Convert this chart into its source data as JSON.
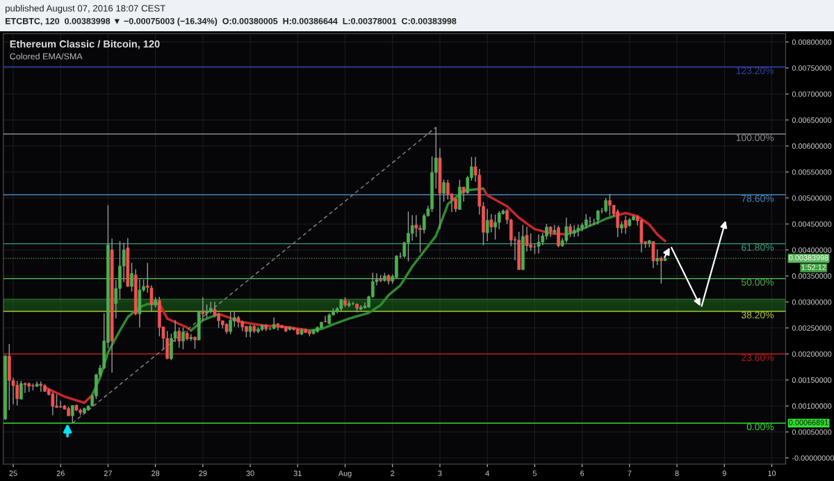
{
  "chart_data": {
    "type": "candlestick",
    "title": "Ethereum Classic / Bitcoin, 120",
    "subtitle": "Colored EMA/SMA",
    "annotations": [
      "published August 07, 2016 18:07 CEST",
      "ETCBTC, 120  0.00383998 ▼ −0.00075003 (−16.34%)  O:0.00380005  H:0.00386644  L:0.00378001  C:0.00383998",
      "1:52:12",
      {
        "text": "123.20%",
        "y": 0.00752
      },
      {
        "text": "100.00%",
        "y": 0.00623
      },
      {
        "text": "78.60%",
        "y": 0.00506
      },
      {
        "text": "61.80%",
        "y": 0.00412
      },
      {
        "text": "50.00%",
        "y": 0.00345
      },
      {
        "text": "38.20%",
        "y": 0.00282
      },
      {
        "text": "23.60%",
        "y": 0.002
      },
      {
        "text": "0.00%",
        "y": 0.00066891
      }
    ],
    "x": [
      "2016-07-24T20:00",
      "2016-07-24T22:00",
      "2016-07-25T00:00",
      "2016-07-25T02:00",
      "2016-07-25T04:00",
      "2016-07-25T06:00",
      "2016-07-25T08:00",
      "2016-07-25T10:00",
      "2016-07-25T12:00",
      "2016-07-25T14:00",
      "2016-07-25T16:00",
      "2016-07-25T18:00",
      "2016-07-25T20:00",
      "2016-07-25T22:00",
      "2016-07-26T00:00",
      "2016-07-26T02:00",
      "2016-07-26T04:00",
      "2016-07-26T06:00",
      "2016-07-26T08:00",
      "2016-07-26T10:00",
      "2016-07-26T12:00",
      "2016-07-26T14:00",
      "2016-07-26T16:00",
      "2016-07-26T18:00",
      "2016-07-26T20:00",
      "2016-07-26T22:00",
      "2016-07-27T00:00",
      "2016-07-27T02:00",
      "2016-07-27T04:00",
      "2016-07-27T06:00",
      "2016-07-27T08:00",
      "2016-07-27T10:00",
      "2016-07-27T12:00",
      "2016-07-27T14:00",
      "2016-07-27T16:00",
      "2016-07-27T18:00",
      "2016-07-27T20:00",
      "2016-07-27T22:00",
      "2016-07-28T00:00",
      "2016-07-28T02:00",
      "2016-07-28T04:00",
      "2016-07-28T06:00",
      "2016-07-28T08:00",
      "2016-07-28T10:00",
      "2016-07-28T12:00",
      "2016-07-28T14:00",
      "2016-07-28T16:00",
      "2016-07-28T18:00",
      "2016-07-28T20:00",
      "2016-07-28T22:00",
      "2016-07-29T00:00",
      "2016-07-29T02:00",
      "2016-07-29T04:00",
      "2016-07-29T06:00",
      "2016-07-29T08:00",
      "2016-07-29T10:00",
      "2016-07-29T12:00",
      "2016-07-29T14:00",
      "2016-07-29T16:00",
      "2016-07-29T18:00",
      "2016-07-29T20:00",
      "2016-07-29T22:00",
      "2016-07-30T00:00",
      "2016-07-30T02:00",
      "2016-07-30T04:00",
      "2016-07-30T06:00",
      "2016-07-30T08:00",
      "2016-07-30T10:00",
      "2016-07-30T12:00",
      "2016-07-30T14:00",
      "2016-07-30T16:00",
      "2016-07-30T18:00",
      "2016-07-30T20:00",
      "2016-07-30T22:00",
      "2016-07-31T00:00",
      "2016-07-31T02:00",
      "2016-07-31T04:00",
      "2016-07-31T06:00",
      "2016-07-31T08:00",
      "2016-07-31T10:00",
      "2016-07-31T12:00",
      "2016-07-31T14:00",
      "2016-07-31T16:00",
      "2016-07-31T18:00",
      "2016-07-31T20:00",
      "2016-07-31T22:00",
      "2016-08-01T00:00",
      "2016-08-01T02:00",
      "2016-08-01T04:00",
      "2016-08-01T06:00",
      "2016-08-01T08:00",
      "2016-08-01T10:00",
      "2016-08-01T12:00",
      "2016-08-01T14:00",
      "2016-08-01T16:00",
      "2016-08-01T18:00",
      "2016-08-01T20:00",
      "2016-08-01T22:00",
      "2016-08-02T00:00",
      "2016-08-02T02:00",
      "2016-08-02T04:00",
      "2016-08-02T06:00",
      "2016-08-02T08:00",
      "2016-08-02T10:00",
      "2016-08-02T12:00",
      "2016-08-02T14:00",
      "2016-08-02T16:00",
      "2016-08-02T18:00",
      "2016-08-02T20:00",
      "2016-08-02T22:00",
      "2016-08-03T00:00",
      "2016-08-03T02:00",
      "2016-08-03T04:00",
      "2016-08-03T06:00",
      "2016-08-03T08:00",
      "2016-08-03T10:00",
      "2016-08-03T12:00",
      "2016-08-03T14:00",
      "2016-08-03T16:00",
      "2016-08-03T18:00",
      "2016-08-03T20:00",
      "2016-08-03T22:00",
      "2016-08-04T00:00",
      "2016-08-04T02:00",
      "2016-08-04T04:00",
      "2016-08-04T06:00",
      "2016-08-04T08:00",
      "2016-08-04T10:00",
      "2016-08-04T12:00",
      "2016-08-04T14:00",
      "2016-08-04T16:00",
      "2016-08-04T18:00",
      "2016-08-04T20:00",
      "2016-08-04T22:00",
      "2016-08-05T00:00",
      "2016-08-05T02:00",
      "2016-08-05T04:00",
      "2016-08-05T06:00",
      "2016-08-05T08:00",
      "2016-08-05T10:00",
      "2016-08-05T12:00",
      "2016-08-05T14:00",
      "2016-08-05T16:00",
      "2016-08-05T18:00",
      "2016-08-05T20:00",
      "2016-08-05T22:00",
      "2016-08-06T00:00",
      "2016-08-06T02:00",
      "2016-08-06T04:00",
      "2016-08-06T06:00",
      "2016-08-06T08:00",
      "2016-08-06T10:00",
      "2016-08-06T12:00",
      "2016-08-06T14:00",
      "2016-08-06T16:00",
      "2016-08-06T18:00",
      "2016-08-06T20:00",
      "2016-08-06T22:00",
      "2016-08-07T00:00",
      "2016-08-07T02:00",
      "2016-08-07T04:00",
      "2016-08-07T06:00",
      "2016-08-07T08:00",
      "2016-08-07T10:00",
      "2016-08-07T12:00",
      "2016-08-07T14:00",
      "2016-08-07T16:00",
      "2016-08-07T18:00"
    ],
    "ohlc": [
      [
        0.00075,
        0.00198,
        0.00073,
        0.00196
      ],
      [
        0.00196,
        0.00219,
        0.00092,
        0.00149
      ],
      [
        0.00149,
        0.00154,
        0.00103,
        0.00139
      ],
      [
        0.0014,
        0.00148,
        0.00101,
        0.00114
      ],
      [
        0.00113,
        0.00148,
        0.00113,
        0.00143
      ],
      [
        0.00143,
        0.00145,
        0.00125,
        0.00141
      ],
      [
        0.00143,
        0.00145,
        0.00127,
        0.00138
      ],
      [
        0.00139,
        0.00143,
        0.0013,
        0.00138
      ],
      [
        0.00138,
        0.00147,
        0.00136,
        0.00142
      ],
      [
        0.00142,
        0.00147,
        0.00127,
        0.00139
      ],
      [
        0.00139,
        0.00142,
        0.00127,
        0.00128
      ],
      [
        0.0013,
        0.00133,
        0.0012,
        0.00122
      ],
      [
        0.00123,
        0.00127,
        0.00082,
        0.00099
      ],
      [
        0.001,
        0.00122,
        0.00097,
        0.00097
      ],
      [
        0.00099,
        0.0011,
        0.00096,
        0.00098
      ],
      [
        0.001,
        0.00102,
        0.00093,
        0.00094
      ],
      [
        0.00095,
        0.00099,
        0.00081,
        0.00081
      ],
      [
        0.00081,
        0.00101,
        0.00066891,
        0.00101
      ],
      [
        0.00101,
        0.00103,
        0.0009,
        0.00092
      ],
      [
        0.00092,
        0.00095,
        0.00082,
        0.00087
      ],
      [
        0.00087,
        0.00097,
        0.00086,
        0.00095
      ],
      [
        0.00092,
        0.00101,
        0.00091,
        0.001
      ],
      [
        0.001,
        0.00121,
        0.00099,
        0.00119
      ],
      [
        0.00119,
        0.00162,
        0.00113,
        0.0016
      ],
      [
        0.0016,
        0.00179,
        0.00156,
        0.00173
      ],
      [
        0.00173,
        0.00278,
        0.00171,
        0.00225
      ],
      [
        0.00222,
        0.00486,
        0.00211,
        0.0041
      ],
      [
        0.004,
        0.00422,
        0.00164,
        0.00225
      ],
      [
        0.00297,
        0.00342,
        0.00268,
        0.00326
      ],
      [
        0.00326,
        0.00417,
        0.00305,
        0.00369
      ],
      [
        0.00369,
        0.00414,
        0.00338,
        0.004
      ],
      [
        0.00404,
        0.00423,
        0.00329,
        0.0033
      ],
      [
        0.0033,
        0.00375,
        0.0032,
        0.00355
      ],
      [
        0.00352,
        0.00363,
        0.00274,
        0.00277
      ],
      [
        0.00277,
        0.00343,
        0.00251,
        0.00323
      ],
      [
        0.00323,
        0.00343,
        0.0032,
        0.0033
      ],
      [
        0.00331,
        0.00375,
        0.00318,
        0.00328
      ],
      [
        0.00327,
        0.00332,
        0.00281,
        0.00295
      ],
      [
        0.00294,
        0.00309,
        0.0029,
        0.00304
      ],
      [
        0.00303,
        0.0031,
        0.00234,
        0.00251
      ],
      [
        0.00252,
        0.00252,
        0.00209,
        0.0023
      ],
      [
        0.0023,
        0.00244,
        0.0019,
        0.00191
      ],
      [
        0.00191,
        0.00239,
        0.00188,
        0.0023
      ],
      [
        0.0023,
        0.00265,
        0.00223,
        0.00243
      ],
      [
        0.00244,
        0.00251,
        0.00212,
        0.00225
      ],
      [
        0.00225,
        0.00251,
        0.00209,
        0.00242
      ],
      [
        0.0024,
        0.00244,
        0.00226,
        0.00229
      ],
      [
        0.00229,
        0.00238,
        0.00225,
        0.00232
      ],
      [
        0.00232,
        0.00234,
        0.0021,
        0.00227
      ],
      [
        0.00227,
        0.00283,
        0.00226,
        0.00281
      ],
      [
        0.00281,
        0.00309,
        0.00263,
        0.00277
      ],
      [
        0.00278,
        0.00295,
        0.0027,
        0.00283
      ],
      [
        0.00281,
        0.003,
        0.00278,
        0.00288
      ],
      [
        0.00286,
        0.003,
        0.0027,
        0.00274
      ],
      [
        0.00277,
        0.00277,
        0.0025,
        0.00264
      ],
      [
        0.00264,
        0.00264,
        0.00249,
        0.00256
      ],
      [
        0.00257,
        0.00259,
        0.00239,
        0.00243
      ],
      [
        0.00243,
        0.00281,
        0.00238,
        0.00265
      ],
      [
        0.00263,
        0.00281,
        0.00252,
        0.0027
      ],
      [
        0.0027,
        0.00273,
        0.00251,
        0.00261
      ],
      [
        0.00262,
        0.00264,
        0.00244,
        0.00252
      ],
      [
        0.00253,
        0.00254,
        0.00232,
        0.00243
      ],
      [
        0.00243,
        0.00256,
        0.00232,
        0.00253
      ],
      [
        0.00253,
        0.00256,
        0.0024,
        0.00244
      ],
      [
        0.00243,
        0.00252,
        0.0024,
        0.00248
      ],
      [
        0.00247,
        0.00257,
        0.00244,
        0.00255
      ],
      [
        0.00255,
        0.00257,
        0.00244,
        0.00248
      ],
      [
        0.00248,
        0.00252,
        0.00246,
        0.00248
      ],
      [
        0.00249,
        0.0027,
        0.00247,
        0.00257
      ],
      [
        0.00258,
        0.00259,
        0.00245,
        0.00253
      ],
      [
        0.00255,
        0.00256,
        0.00249,
        0.00251
      ],
      [
        0.00252,
        0.00253,
        0.00242,
        0.00244
      ],
      [
        0.00247,
        0.00253,
        0.00245,
        0.00251
      ],
      [
        0.0025,
        0.00251,
        0.00245,
        0.00247
      ],
      [
        0.00248,
        0.00249,
        0.00237,
        0.00238
      ],
      [
        0.00238,
        0.00249,
        0.00236,
        0.00246
      ],
      [
        0.00246,
        0.00249,
        0.0024,
        0.00241
      ],
      [
        0.00243,
        0.00244,
        0.00234,
        0.00239
      ],
      [
        0.00239,
        0.00247,
        0.00238,
        0.00245
      ],
      [
        0.00243,
        0.00253,
        0.00241,
        0.00251
      ],
      [
        0.0025,
        0.00262,
        0.00249,
        0.00261
      ],
      [
        0.00263,
        0.00273,
        0.00261,
        0.00262
      ],
      [
        0.00258,
        0.00278,
        0.00257,
        0.00275
      ],
      [
        0.00275,
        0.00288,
        0.00274,
        0.00283
      ],
      [
        0.00281,
        0.0029,
        0.00278,
        0.00287
      ],
      [
        0.00287,
        0.00306,
        0.00282,
        0.00304
      ],
      [
        0.00303,
        0.00309,
        0.0029,
        0.00294
      ],
      [
        0.00293,
        0.00303,
        0.0029,
        0.00297
      ],
      [
        0.00297,
        0.003,
        0.00294,
        0.00297
      ],
      [
        0.00296,
        0.00297,
        0.0028,
        0.00288
      ],
      [
        0.00286,
        0.00294,
        0.00284,
        0.0029
      ],
      [
        0.00289,
        0.00299,
        0.00287,
        0.00292
      ],
      [
        0.0029,
        0.00312,
        0.00289,
        0.0031
      ],
      [
        0.0031,
        0.00356,
        0.00308,
        0.00339
      ],
      [
        0.00339,
        0.00355,
        0.00332,
        0.00343
      ],
      [
        0.00344,
        0.00352,
        0.00338,
        0.00341
      ],
      [
        0.00341,
        0.00356,
        0.00339,
        0.0035
      ],
      [
        0.00351,
        0.00353,
        0.00334,
        0.0034
      ],
      [
        0.0034,
        0.00353,
        0.00335,
        0.00349
      ],
      [
        0.00347,
        0.0039,
        0.00345,
        0.00388
      ],
      [
        0.00388,
        0.00395,
        0.00384,
        0.00388
      ],
      [
        0.00388,
        0.00416,
        0.00385,
        0.00414
      ],
      [
        0.00414,
        0.00474,
        0.00378,
        0.00432
      ],
      [
        0.00432,
        0.00467,
        0.00418,
        0.00447
      ],
      [
        0.00448,
        0.00467,
        0.00425,
        0.00442
      ],
      [
        0.00442,
        0.00448,
        0.00395,
        0.00439
      ],
      [
        0.00439,
        0.0047,
        0.00432,
        0.00466
      ],
      [
        0.00466,
        0.00485,
        0.00464,
        0.00479
      ],
      [
        0.00479,
        0.0058,
        0.00473,
        0.00549
      ],
      [
        0.00549,
        0.00636,
        0.00518,
        0.00577
      ],
      [
        0.00577,
        0.00596,
        0.0044,
        0.00509
      ],
      [
        0.00509,
        0.00535,
        0.00493,
        0.0053
      ],
      [
        0.00529,
        0.00535,
        0.00497,
        0.00507
      ],
      [
        0.00508,
        0.00508,
        0.00473,
        0.00497
      ],
      [
        0.00499,
        0.00499,
        0.00473,
        0.00479
      ],
      [
        0.00478,
        0.00535,
        0.00477,
        0.00521
      ],
      [
        0.00521,
        0.00521,
        0.00493,
        0.0051
      ],
      [
        0.0051,
        0.00543,
        0.00508,
        0.00539
      ],
      [
        0.00539,
        0.00579,
        0.00533,
        0.0056
      ],
      [
        0.0056,
        0.00579,
        0.00531,
        0.00544
      ],
      [
        0.00544,
        0.00556,
        0.00468,
        0.00484
      ],
      [
        0.00484,
        0.00492,
        0.00409,
        0.00434
      ],
      [
        0.00433,
        0.00479,
        0.00417,
        0.00457
      ],
      [
        0.00458,
        0.00469,
        0.00434,
        0.00444
      ],
      [
        0.00444,
        0.00468,
        0.0042,
        0.00453
      ],
      [
        0.00453,
        0.00475,
        0.0044,
        0.00471
      ],
      [
        0.0047,
        0.00478,
        0.00468,
        0.00475
      ],
      [
        0.00476,
        0.00479,
        0.0045,
        0.00458
      ],
      [
        0.00458,
        0.0046,
        0.00407,
        0.00419
      ],
      [
        0.0042,
        0.00426,
        0.0038,
        0.00419
      ],
      [
        0.00419,
        0.00435,
        0.00362,
        0.00362
      ],
      [
        0.00362,
        0.00448,
        0.00362,
        0.00426
      ],
      [
        0.00428,
        0.00445,
        0.00397,
        0.00408
      ],
      [
        0.0041,
        0.00432,
        0.00398,
        0.00405
      ],
      [
        0.00406,
        0.00413,
        0.00392,
        0.00406
      ],
      [
        0.00407,
        0.0043,
        0.00393,
        0.00415
      ],
      [
        0.00415,
        0.00433,
        0.00409,
        0.00427
      ],
      [
        0.00427,
        0.0045,
        0.0042,
        0.00444
      ],
      [
        0.00444,
        0.00446,
        0.00425,
        0.00435
      ],
      [
        0.00434,
        0.00448,
        0.0043,
        0.00438
      ],
      [
        0.00443,
        0.00447,
        0.00405,
        0.00408
      ],
      [
        0.00408,
        0.00423,
        0.00406,
        0.00418
      ],
      [
        0.00418,
        0.00462,
        0.00414,
        0.00445
      ],
      [
        0.00445,
        0.0045,
        0.00425,
        0.00434
      ],
      [
        0.00432,
        0.00448,
        0.00425,
        0.00438
      ],
      [
        0.00438,
        0.00449,
        0.00426,
        0.00442
      ],
      [
        0.00442,
        0.00452,
        0.00436,
        0.00448
      ],
      [
        0.00447,
        0.00469,
        0.00442,
        0.00458
      ],
      [
        0.00455,
        0.00464,
        0.00445,
        0.00455
      ],
      [
        0.0045,
        0.0046,
        0.00448,
        0.0045
      ],
      [
        0.00458,
        0.00477,
        0.00449,
        0.00475
      ],
      [
        0.00475,
        0.00481,
        0.0047,
        0.00475
      ],
      [
        0.00475,
        0.005,
        0.00472,
        0.00495
      ],
      [
        0.00495,
        0.00508,
        0.00466,
        0.00486
      ],
      [
        0.00486,
        0.00486,
        0.00465,
        0.00469
      ],
      [
        0.00474,
        0.00478,
        0.00425,
        0.00443
      ],
      [
        0.00442,
        0.00455,
        0.00432,
        0.00449
      ],
      [
        0.00457,
        0.00466,
        0.00431,
        0.00443
      ],
      [
        0.00447,
        0.00461,
        0.00445,
        0.00458
      ],
      [
        0.00458,
        0.00467,
        0.00457,
        0.00464
      ],
      [
        0.00464,
        0.00466,
        0.00447,
        0.00456
      ],
      [
        0.00457,
        0.00459,
        0.00395,
        0.00414
      ],
      [
        0.00416,
        0.00416,
        0.00404,
        0.00413
      ],
      [
        0.00413,
        0.00419,
        0.00405,
        0.00418
      ],
      [
        0.00416,
        0.00416,
        0.00365,
        0.00379
      ],
      [
        0.00379,
        0.00401,
        0.00371,
        0.00384
      ],
      [
        0.00384,
        0.00387,
        0.00335,
        0.00379
      ],
      [
        0.00380005,
        0.00386644,
        0.00378001,
        0.00383998
      ]
    ],
    "series": [
      {
        "type": "line",
        "x": [
          "2016-07-25T16:00",
          "2016-07-26T02:00",
          "2016-07-26T12:00",
          "2016-07-26T16:00",
          "2016-07-26T20:00",
          "2016-07-27T00:00",
          "2016-07-27T06:00",
          "2016-07-27T10:00",
          "2016-07-27T16:00",
          "2016-07-27T20:00",
          "2016-07-28T02:00",
          "2016-07-28T06:00",
          "2016-07-28T16:00",
          "2016-07-28T18:00",
          "2016-07-29T00:00",
          "2016-07-29T08:00",
          "2016-07-29T20:00",
          "2016-07-30T06:00",
          "2016-07-30T20:00",
          "2016-07-31T06:00",
          "2016-07-31T12:00",
          "2016-07-31T18:00",
          "2016-08-01T02:00",
          "2016-08-01T12:00",
          "2016-08-01T18:00",
          "2016-08-01T22:00",
          "2016-08-02T04:00",
          "2016-08-02T10:00",
          "2016-08-02T22:00",
          "2016-08-03T04:00",
          "2016-08-03T12:00",
          "2016-08-03T22:00",
          "2016-08-04T00:00",
          "2016-08-04T10:00",
          "2016-08-04T16:00",
          "2016-08-05T00:00",
          "2016-08-05T08:00",
          "2016-08-05T16:00",
          "2016-08-05T20:00",
          "2016-08-06T08:00",
          "2016-08-06T12:00",
          "2016-08-06T16:00",
          "2016-08-06T22:00",
          "2016-08-07T04:00",
          "2016-08-07T10:00",
          "2016-08-07T14:00",
          "2016-08-07T18:00"
        ],
        "values": [
          0.00136,
          0.00118,
          0.00106,
          0.00121,
          null,
          null,
          null,
          null,
          null,
          null,
          0.00297,
          0.00268,
          0.00251,
          0.00245,
          null,
          0.00277,
          0.00261,
          0.00255,
          0.00251,
          0.00245,
          null,
          null,
          null,
          null,
          null,
          null,
          null,
          null,
          null,
          null,
          null,
          0.00518,
          0.00505,
          0.00484,
          0.00462,
          0.0044,
          0.00432,
          0.0043,
          null,
          null,
          null,
          0.00465,
          0.00471,
          0.00465,
          0.00449,
          0.0043,
          0.00417
        ],
        "color": "#c62828"
      },
      {
        "type": "line",
        "x": [
          "2016-07-26T16:00",
          "2016-07-26T20:00",
          "2016-07-27T00:00",
          "2016-07-27T06:00",
          "2016-07-27T10:00",
          "2016-07-27T16:00",
          "2016-07-27T20:00",
          "2016-07-28T02:00",
          "2016-07-28T06:00",
          "2016-07-28T16:00",
          "2016-07-28T18:00",
          "2016-07-29T00:00",
          "2016-07-29T08:00",
          "2016-07-29T20:00",
          "2016-07-30T06:00",
          "2016-07-30T20:00",
          "2016-07-31T06:00",
          "2016-07-31T12:00",
          "2016-07-31T18:00",
          "2016-08-01T02:00",
          "2016-08-01T12:00",
          "2016-08-01T18:00",
          "2016-08-01T22:00",
          "2016-08-02T04:00",
          "2016-08-02T10:00",
          "2016-08-02T22:00",
          "2016-08-03T04:00",
          "2016-08-03T12:00",
          "2016-08-03T22:00",
          "2016-08-04T00:00",
          "2016-08-04T10:00",
          "2016-08-04T16:00",
          "2016-08-05T00:00",
          "2016-08-05T08:00",
          "2016-08-05T16:00",
          "2016-08-05T20:00",
          "2016-08-06T08:00",
          "2016-08-06T12:00",
          "2016-08-06T16:00"
        ],
        "values": [
          0.00121,
          0.00155,
          0.00203,
          0.00245,
          0.00271,
          0.0029,
          0.00296,
          0.00297,
          null,
          null,
          0.00245,
          0.00265,
          0.00277,
          null,
          null,
          null,
          0.00245,
          0.00248,
          0.00257,
          0.00268,
          0.00279,
          0.00294,
          0.00313,
          0.00332,
          0.00368,
          0.00427,
          0.00488,
          0.00514,
          0.00518,
          null,
          null,
          null,
          null,
          null,
          0.0043,
          0.00434,
          0.00453,
          0.0046,
          0.00465
        ],
        "color": "#2e8b2e"
      },
      {
        "type": "line",
        "x": [
          "2016-07-26T06:00",
          "2016-08-02T22:00"
        ],
        "values": [
          0.00067,
          0.00636
        ],
        "color": "#8a8a8a",
        "line_style": "dashed"
      }
    ],
    "ref_lines": [
      {
        "axis": "y",
        "value": 0.00752,
        "color": "#303f9f"
      },
      {
        "axis": "y",
        "value": 0.00623,
        "color": "#8a8a8a"
      },
      {
        "axis": "y",
        "value": 0.00506,
        "color": "#4a86b8"
      },
      {
        "axis": "y",
        "value": 0.00412,
        "color": "#3a9d7a"
      },
      {
        "axis": "y",
        "value": 0.00345,
        "color": "#4caf50"
      },
      {
        "axis": "y",
        "value": 0.00282,
        "color": "#b5c73a"
      },
      {
        "axis": "y",
        "value": 0.002,
        "color": "#b71c1c"
      },
      {
        "axis": "y",
        "value": 0.00066891,
        "label": "0.00066891",
        "color": "#33dd33"
      },
      {
        "axis": "y",
        "value": 0.00383998,
        "label": "0.00383998",
        "color": "#5cb85c",
        "line_style": "dotted"
      }
    ],
    "bands": [
      {
        "axis": "y",
        "from": 0.00282,
        "to": 0.00305,
        "color": "#1f7a1f"
      }
    ],
    "xlim": [
      "2016-07-24T19:00",
      "2016-08-10T07:00"
    ],
    "xticks": [
      {
        "value": "2016-07-25",
        "label": "25"
      },
      {
        "value": "2016-07-26",
        "label": "26"
      },
      {
        "value": "2016-07-27",
        "label": "27"
      },
      {
        "value": "2016-07-28",
        "label": "28"
      },
      {
        "value": "2016-07-29",
        "label": "29"
      },
      {
        "value": "2016-07-30",
        "label": "30"
      },
      {
        "value": "2016-07-31",
        "label": "31"
      },
      {
        "value": "2016-08-01",
        "label": "Aug"
      },
      {
        "value": "2016-08-02",
        "label": "2"
      },
      {
        "value": "2016-08-03",
        "label": "3"
      },
      {
        "value": "2016-08-04",
        "label": "4"
      },
      {
        "value": "2016-08-05",
        "label": "5"
      },
      {
        "value": "2016-08-06",
        "label": "6"
      },
      {
        "value": "2016-08-07",
        "label": "7"
      },
      {
        "value": "2016-08-08",
        "label": "8"
      },
      {
        "value": "2016-08-09",
        "label": "9"
      },
      {
        "value": "2016-08-10",
        "label": "10"
      }
    ],
    "ylim": [
      -0.00012,
      0.00816
    ],
    "yticks": [
      {
        "value": 0,
        "label": "-0.00000000"
      },
      {
        "value": 0.0005,
        "label": "0.00050000"
      },
      {
        "value": 0.001,
        "label": "0.00100000"
      },
      {
        "value": 0.0015,
        "label": "0.00150000"
      },
      {
        "value": 0.002,
        "label": "0.00200000"
      },
      {
        "value": 0.0025,
        "label": "0.00250000"
      },
      {
        "value": 0.003,
        "label": "0.00300000"
      },
      {
        "value": 0.0035,
        "label": "0.00350000"
      },
      {
        "value": 0.004,
        "label": "0.00400000"
      },
      {
        "value": 0.0045,
        "label": "0.00450000"
      },
      {
        "value": 0.005,
        "label": "0.00500000"
      },
      {
        "value": 0.0055,
        "label": "0.00550000"
      },
      {
        "value": 0.006,
        "label": "0.00600000"
      },
      {
        "value": 0.0065,
        "label": "0.00650000"
      },
      {
        "value": 0.007,
        "label": "0.00700000"
      },
      {
        "value": 0.0075,
        "label": "0.00750000"
      },
      {
        "value": 0.008,
        "label": "0.00800000"
      }
    ],
    "grid": true
  }
}
